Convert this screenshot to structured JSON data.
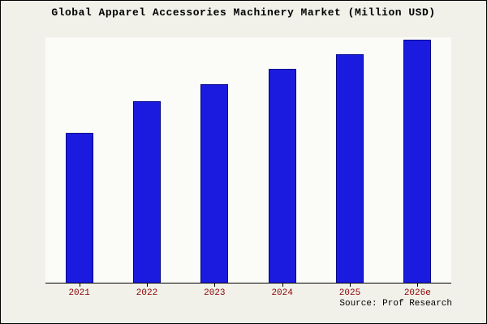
{
  "chart_data": {
    "type": "bar",
    "title": "Global Apparel Accessories Machinery Market (Million USD)",
    "categories": [
      "2021",
      "2022",
      "2023",
      "2024",
      "2025",
      "2026e"
    ],
    "values": [
      61,
      74,
      81,
      87,
      93,
      99
    ],
    "value_note": "relative estimated values; chart displays no y-axis scale or data labels",
    "xlabel": "",
    "ylabel": "",
    "ylim": [
      0,
      100
    ],
    "grid": false,
    "legend_position": "none",
    "colors": {
      "bar_fill": "#1b1bdf",
      "bar_edge": "#00008b",
      "tick_label": "#8b0000",
      "axis": "#000000",
      "title": "#000000",
      "outer_background": "#f1f1ea",
      "plot_background": "#fbfbf7"
    }
  },
  "source": {
    "label": "Source: Prof Research"
  }
}
